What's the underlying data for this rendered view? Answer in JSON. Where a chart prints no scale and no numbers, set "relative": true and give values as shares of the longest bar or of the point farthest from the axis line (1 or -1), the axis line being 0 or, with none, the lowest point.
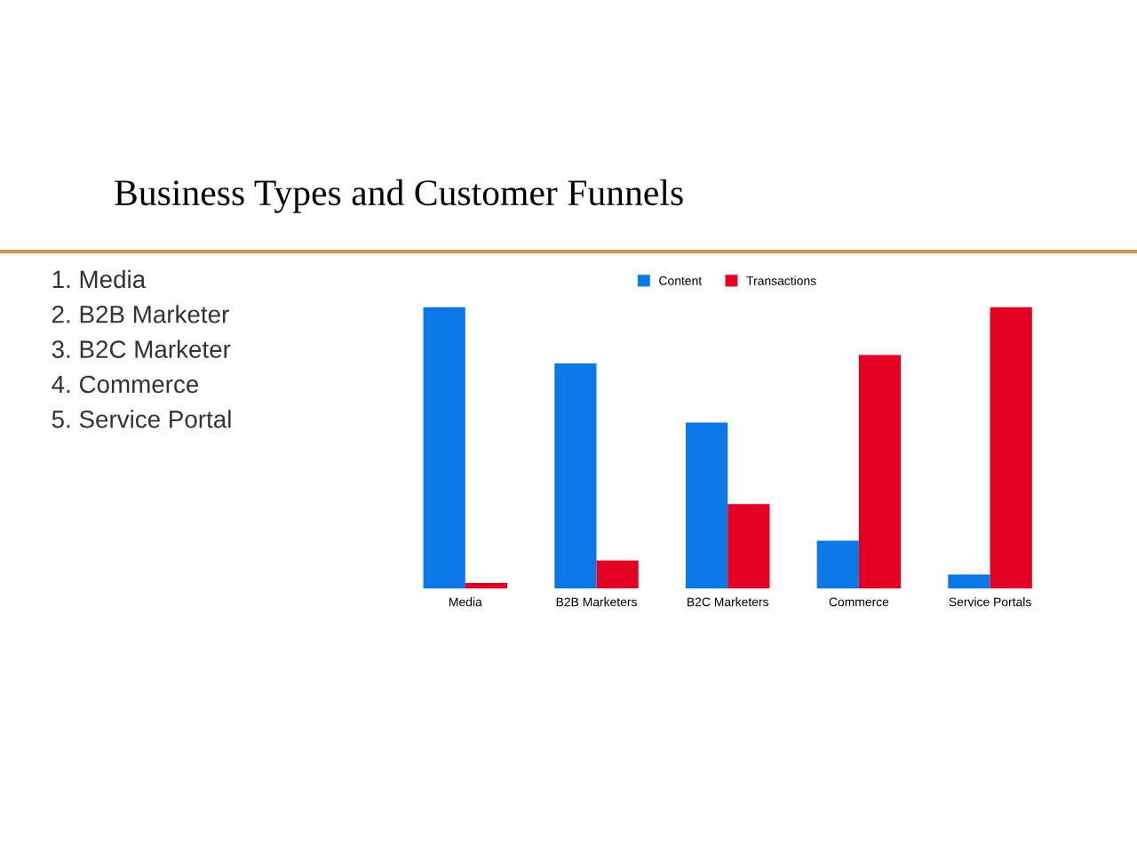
{
  "chart_data": {
    "type": "bar",
    "title": "Business Types and Customer Funnels",
    "annotations": [
      "1. Media",
      "2. B2B Marketer",
      "3. B2C Marketer",
      "4. Commerce",
      "5. Service Portal"
    ],
    "categories": [
      "Media",
      "B2B Marketers",
      "B2C Marketers",
      "Commerce",
      "Service Portals"
    ],
    "series": [
      {
        "name": "Content",
        "color": "#0a78e6",
        "values": [
          1,
          0.8,
          0.59,
          0.17,
          0.05
        ]
      },
      {
        "name": "Transactions",
        "color": "#e30022",
        "values": [
          0.02,
          0.1,
          0.3,
          0.83,
          1
        ]
      }
    ],
    "relative": true,
    "legend": "top",
    "grid": false
  }
}
